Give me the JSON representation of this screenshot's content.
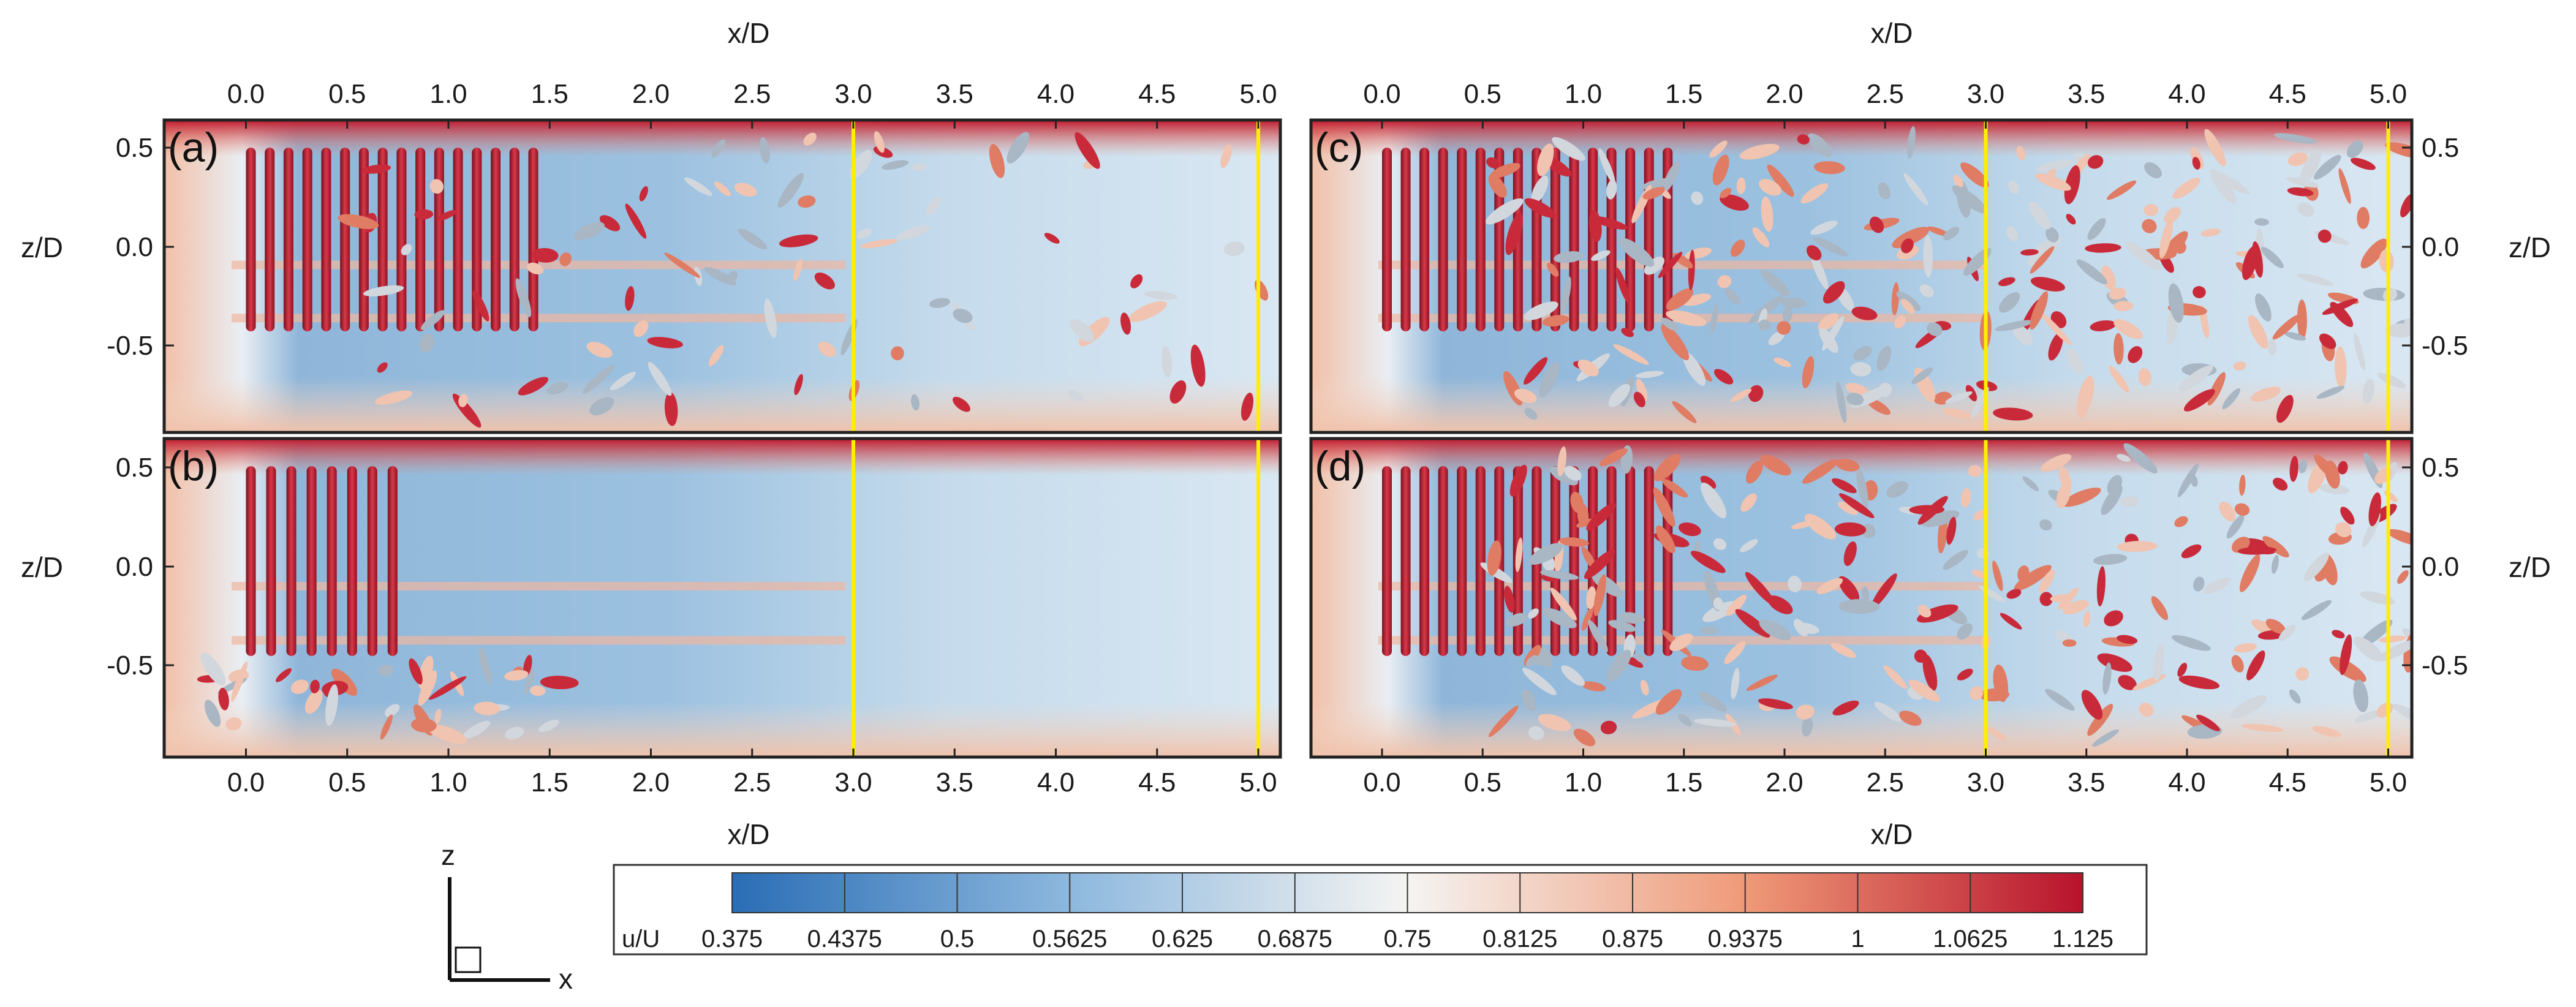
{
  "axes": {
    "x_title": "x/D",
    "z_title": "z/D",
    "x_ticks": [
      "0.0",
      "0.5",
      "1.0",
      "1.5",
      "2.0",
      "2.5",
      "3.0",
      "3.5",
      "4.0",
      "4.5",
      "5.0"
    ],
    "z_ticks": [
      "0.5",
      "0.0",
      "-0.5"
    ]
  },
  "panels": [
    {
      "tag": "(a)",
      "markers_xD": [
        3.0,
        5.0
      ]
    },
    {
      "tag": "(b)",
      "markers_xD": [
        3.0,
        5.0
      ]
    },
    {
      "tag": "(c)",
      "markers_xD": [
        3.0,
        5.0
      ]
    },
    {
      "tag": "(d)",
      "markers_xD": [
        3.0,
        5.0
      ]
    }
  ],
  "colorbar": {
    "variable": "u/U",
    "ticks": [
      "0.375",
      "0.4375",
      "0.5",
      "0.5625",
      "0.625",
      "0.6875",
      "0.75",
      "0.8125",
      "0.875",
      "0.9375",
      "1",
      "1.0625",
      "1.125"
    ],
    "colors": {
      "low": "#2a6db5",
      "mid": "#f5f4f2",
      "high": "#b8132c"
    }
  },
  "triad": {
    "vertical": "z",
    "horizontal": "x"
  }
}
